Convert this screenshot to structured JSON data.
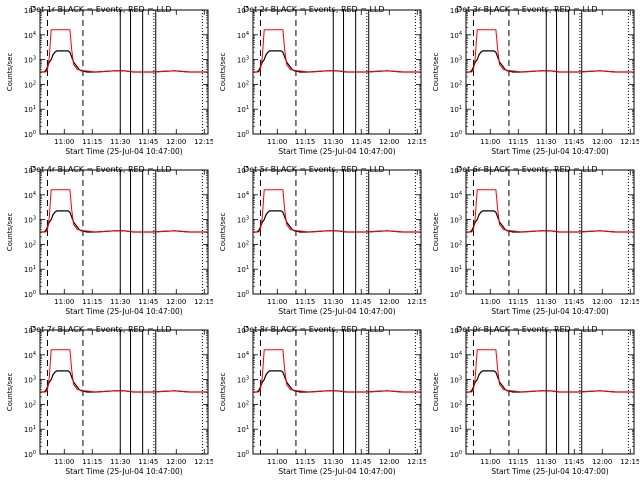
{
  "colors": {
    "events": "#000000",
    "lld": "#ff0000",
    "axis": "#000000",
    "background": "#ffffff"
  },
  "common": {
    "ylabel": "Counts/sec",
    "xlabel": "Start Time (25-Jul-04 10:47:00)",
    "title_suffix": "BLACK = Events, RED = LLD",
    "x_ticks": [
      "11:00",
      "11:15",
      "11:30",
      "11:45",
      "12:00",
      "12:15"
    ],
    "y_ticks": [
      "10^0",
      "10^1",
      "10^2",
      "10^3",
      "10^4",
      "10^5"
    ],
    "markers_minutes": {
      "dotted": [
        61,
        87
      ],
      "dashed_by_row": [
        [
          4,
          23
        ],
        [
          4,
          23
        ],
        [
          4,
          23
        ]
      ]
    },
    "solid_minutes": [
      43,
      48.5,
      55,
      62
    ]
  },
  "chart_data": [
    {
      "type": "line",
      "title": "Det 1r",
      "series": [
        {
          "name": "Events",
          "color": "#000000"
        },
        {
          "name": "LLD",
          "color": "#ff0000"
        }
      ]
    },
    {
      "type": "line",
      "title": "Det 2r",
      "series": [
        {
          "name": "Events",
          "color": "#000000"
        },
        {
          "name": "LLD",
          "color": "#ff0000"
        }
      ]
    },
    {
      "type": "line",
      "title": "Det 3r",
      "series": [
        {
          "name": "Events",
          "color": "#000000"
        },
        {
          "name": "LLD",
          "color": "#ff0000"
        }
      ]
    },
    {
      "type": "line",
      "title": "Det 4r",
      "series": [
        {
          "name": "Events",
          "color": "#000000"
        },
        {
          "name": "LLD",
          "color": "#ff0000"
        }
      ]
    },
    {
      "type": "line",
      "title": "Det 5r",
      "series": [
        {
          "name": "Events",
          "color": "#000000"
        },
        {
          "name": "LLD",
          "color": "#ff0000"
        }
      ]
    },
    {
      "type": "line",
      "title": "Det 6r",
      "series": [
        {
          "name": "Events",
          "color": "#000000"
        },
        {
          "name": "LLD",
          "color": "#ff0000"
        }
      ]
    },
    {
      "type": "line",
      "title": "Det 7r",
      "series": [
        {
          "name": "Events",
          "color": "#000000"
        },
        {
          "name": "LLD",
          "color": "#ff0000"
        }
      ]
    },
    {
      "type": "line",
      "title": "Det 8r",
      "series": [
        {
          "name": "Events",
          "color": "#000000"
        },
        {
          "name": "LLD",
          "color": "#ff0000"
        }
      ]
    },
    {
      "type": "line",
      "title": "Det 9r",
      "series": [
        {
          "name": "Events",
          "color": "#000000"
        },
        {
          "name": "LLD",
          "color": "#ff0000"
        }
      ]
    }
  ],
  "series_data": {
    "x_range_minutes": [
      0,
      90
    ],
    "y_range_log10": [
      0,
      5
    ],
    "lld_points": [
      [
        0,
        2.5
      ],
      [
        3,
        2.5
      ],
      [
        4,
        2.6
      ],
      [
        5,
        3.1
      ],
      [
        6,
        4.2
      ],
      [
        7,
        4.2
      ],
      [
        16,
        4.2
      ],
      [
        17,
        3.4
      ],
      [
        18,
        2.8
      ],
      [
        19,
        2.7
      ],
      [
        20,
        2.6
      ],
      [
        24,
        2.55
      ],
      [
        30,
        2.5
      ],
      [
        40,
        2.55
      ],
      [
        45,
        2.55
      ],
      [
        50,
        2.5
      ],
      [
        60,
        2.5
      ],
      [
        72,
        2.55
      ],
      [
        80,
        2.5
      ],
      [
        90,
        2.5
      ]
    ],
    "events_points": [
      [
        0,
        2.5
      ],
      [
        2,
        2.5
      ],
      [
        3,
        2.55
      ],
      [
        4,
        2.7
      ],
      [
        5,
        2.9
      ],
      [
        6,
        3.0
      ],
      [
        7,
        3.2
      ],
      [
        8,
        3.3
      ],
      [
        9,
        3.35
      ],
      [
        10,
        3.35
      ],
      [
        12,
        3.35
      ],
      [
        15,
        3.35
      ],
      [
        16,
        3.3
      ],
      [
        17,
        3.1
      ],
      [
        18,
        2.9
      ],
      [
        19,
        2.8
      ],
      [
        20,
        2.7
      ],
      [
        21,
        2.6
      ],
      [
        22,
        2.55
      ],
      [
        23,
        2.55
      ],
      [
        25,
        2.5
      ],
      [
        30,
        2.5
      ],
      [
        40,
        2.55
      ],
      [
        45,
        2.55
      ],
      [
        50,
        2.5
      ],
      [
        60,
        2.5
      ],
      [
        72,
        2.55
      ],
      [
        80,
        2.5
      ],
      [
        90,
        2.5
      ]
    ]
  }
}
